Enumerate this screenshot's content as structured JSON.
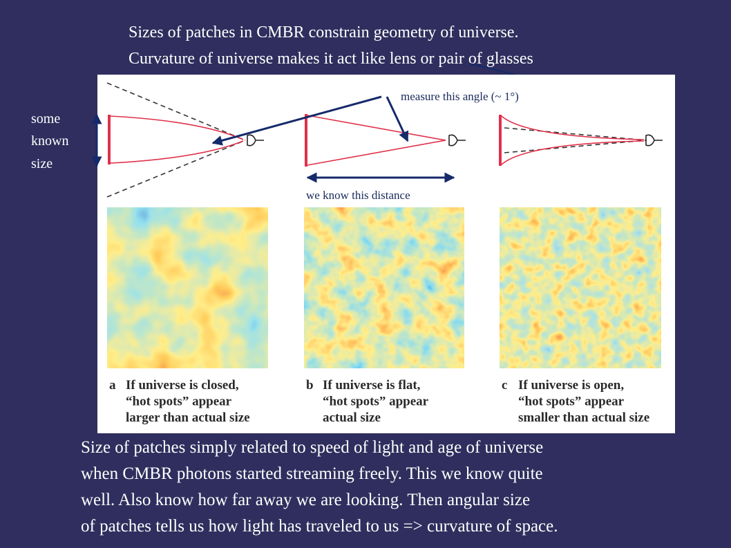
{
  "title": {
    "lines": [
      "Sizes of patches in CMBR constrain geometry of universe.",
      "Curvature of universe makes it act like lens or pair of glasses"
    ]
  },
  "labels": {
    "known_size": [
      "some",
      "known",
      "size"
    ],
    "angle": "measure this angle (~ 1°)",
    "distance": "we know this distance"
  },
  "panels": [
    {
      "letter": "a",
      "caption": [
        "If universe is closed,",
        "“hot spots” appear",
        "larger than actual size"
      ]
    },
    {
      "letter": "b",
      "caption": [
        "If universe is flat,",
        "“hot spots” appear",
        "actual size"
      ]
    },
    {
      "letter": "c",
      "caption": [
        "If universe is open,",
        "“hot spots” appear",
        "smaller than actual size"
      ]
    }
  ],
  "body": {
    "lines": [
      "Size of patches simply related to speed of light and age of universe",
      "when CMBR photons started streaming freely.  This we know quite",
      "well.  Also know how far away we are looking.   Then angular size",
      "of patches tells us how light has traveled to us => curvature of space."
    ]
  }
}
